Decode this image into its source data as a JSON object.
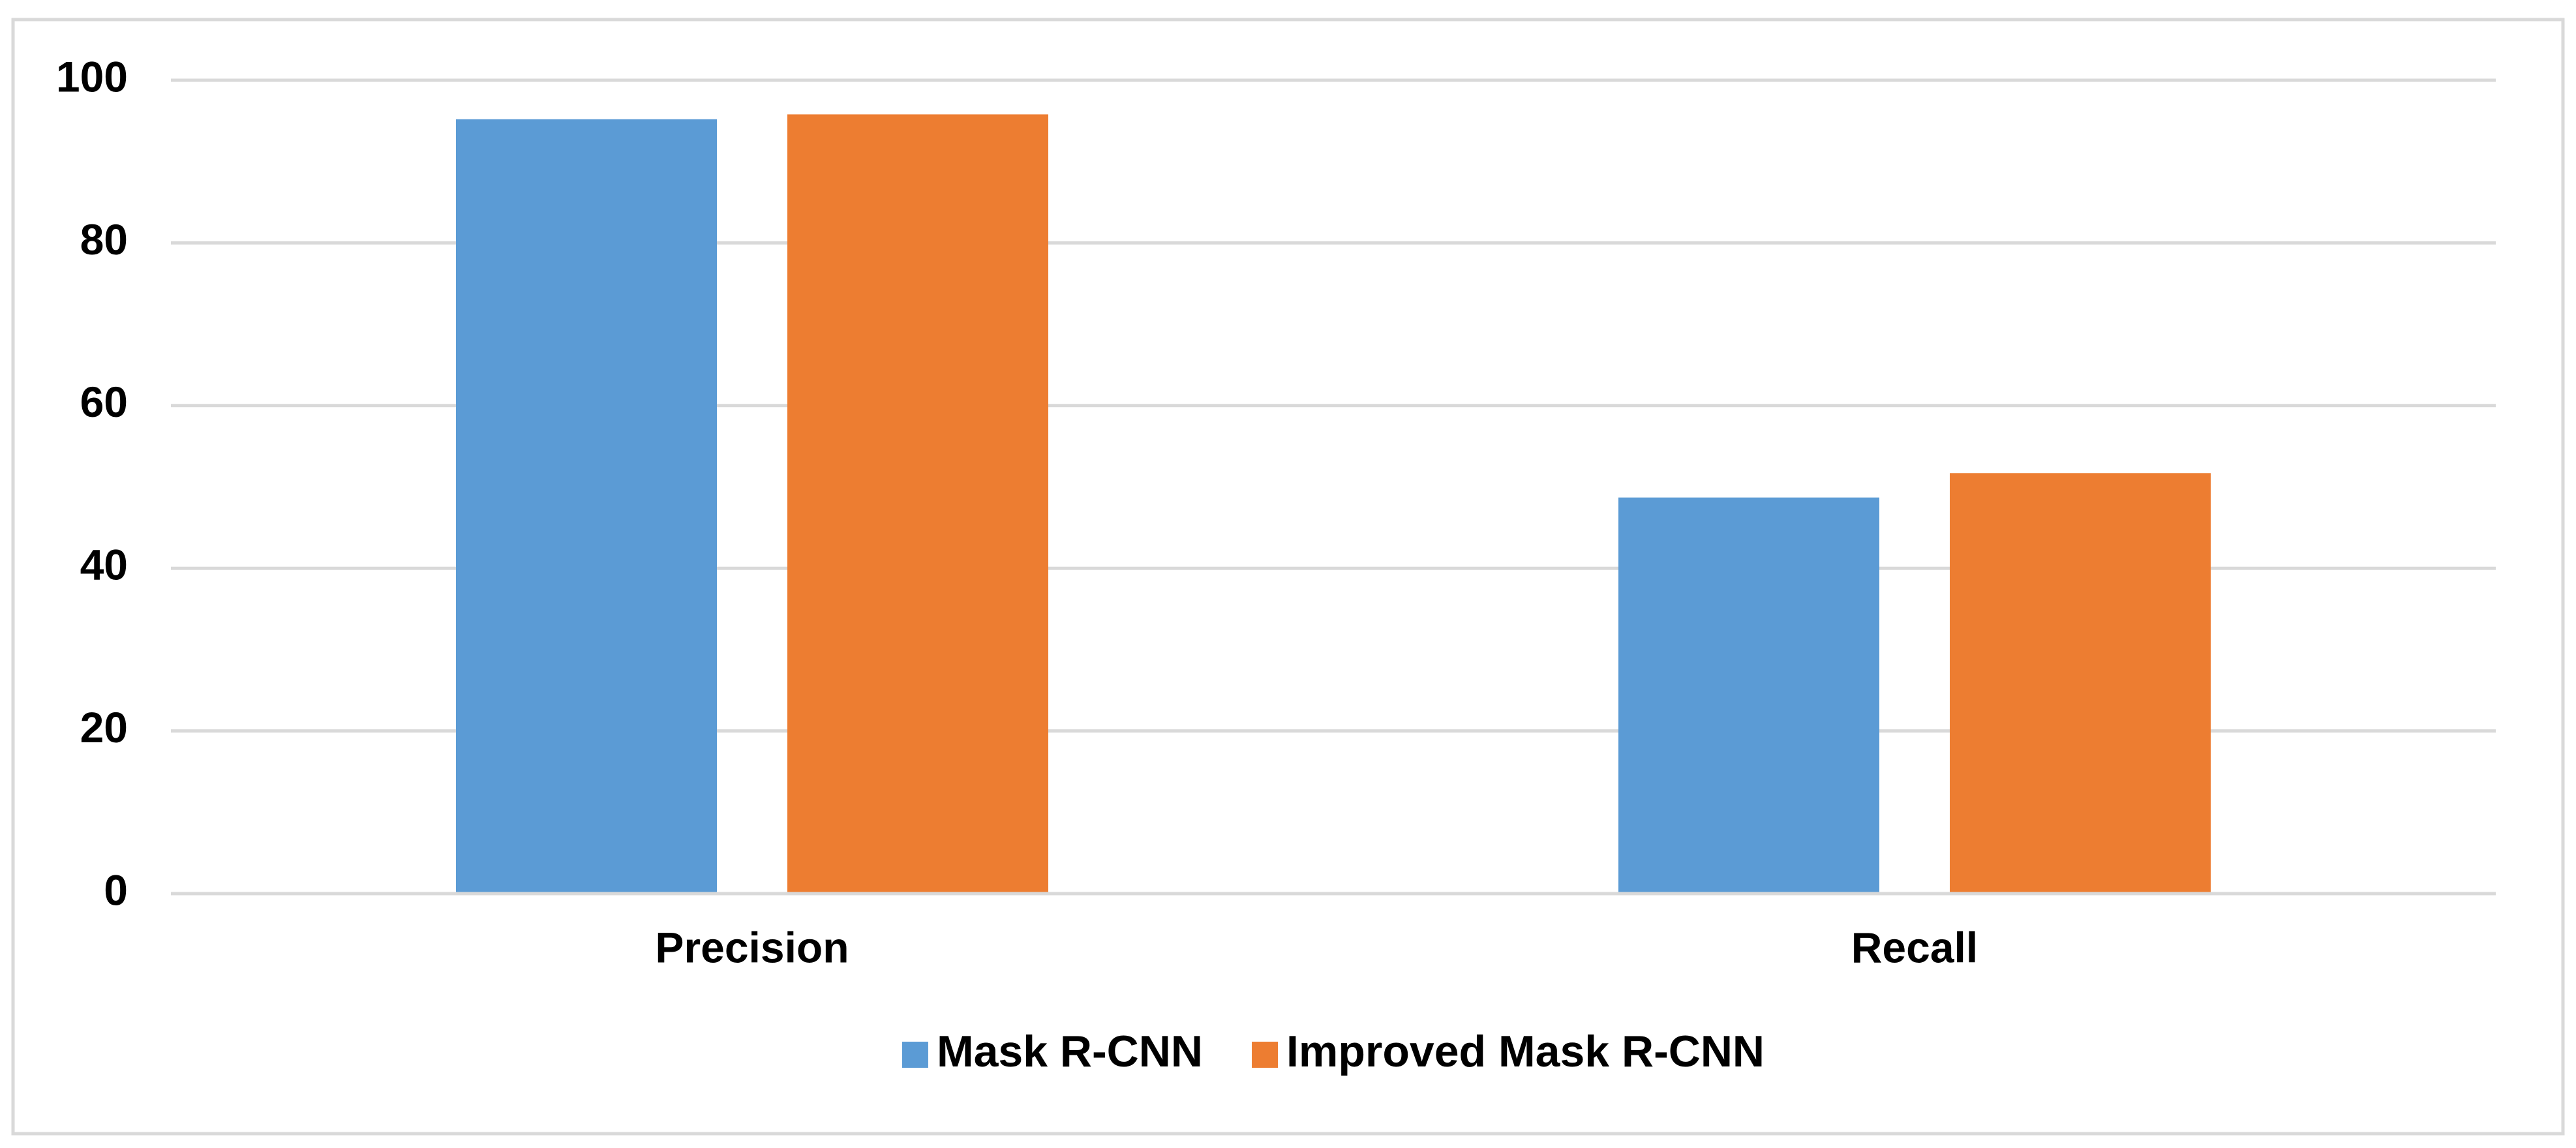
{
  "chart_data": {
    "type": "bar",
    "categories": [
      "Precision",
      "Recall"
    ],
    "series": [
      {
        "name": "Mask R-CNN",
        "color": "#5b9bd5",
        "values": [
          95.2,
          48.7
        ]
      },
      {
        "name": "Improved Mask R-CNN",
        "color": "#ed7d31",
        "values": [
          95.8,
          51.7
        ]
      }
    ],
    "ylim": [
      0,
      100
    ],
    "yticks": [
      0,
      20,
      40,
      60,
      80,
      100
    ],
    "grid": true,
    "legend": "bottom"
  }
}
